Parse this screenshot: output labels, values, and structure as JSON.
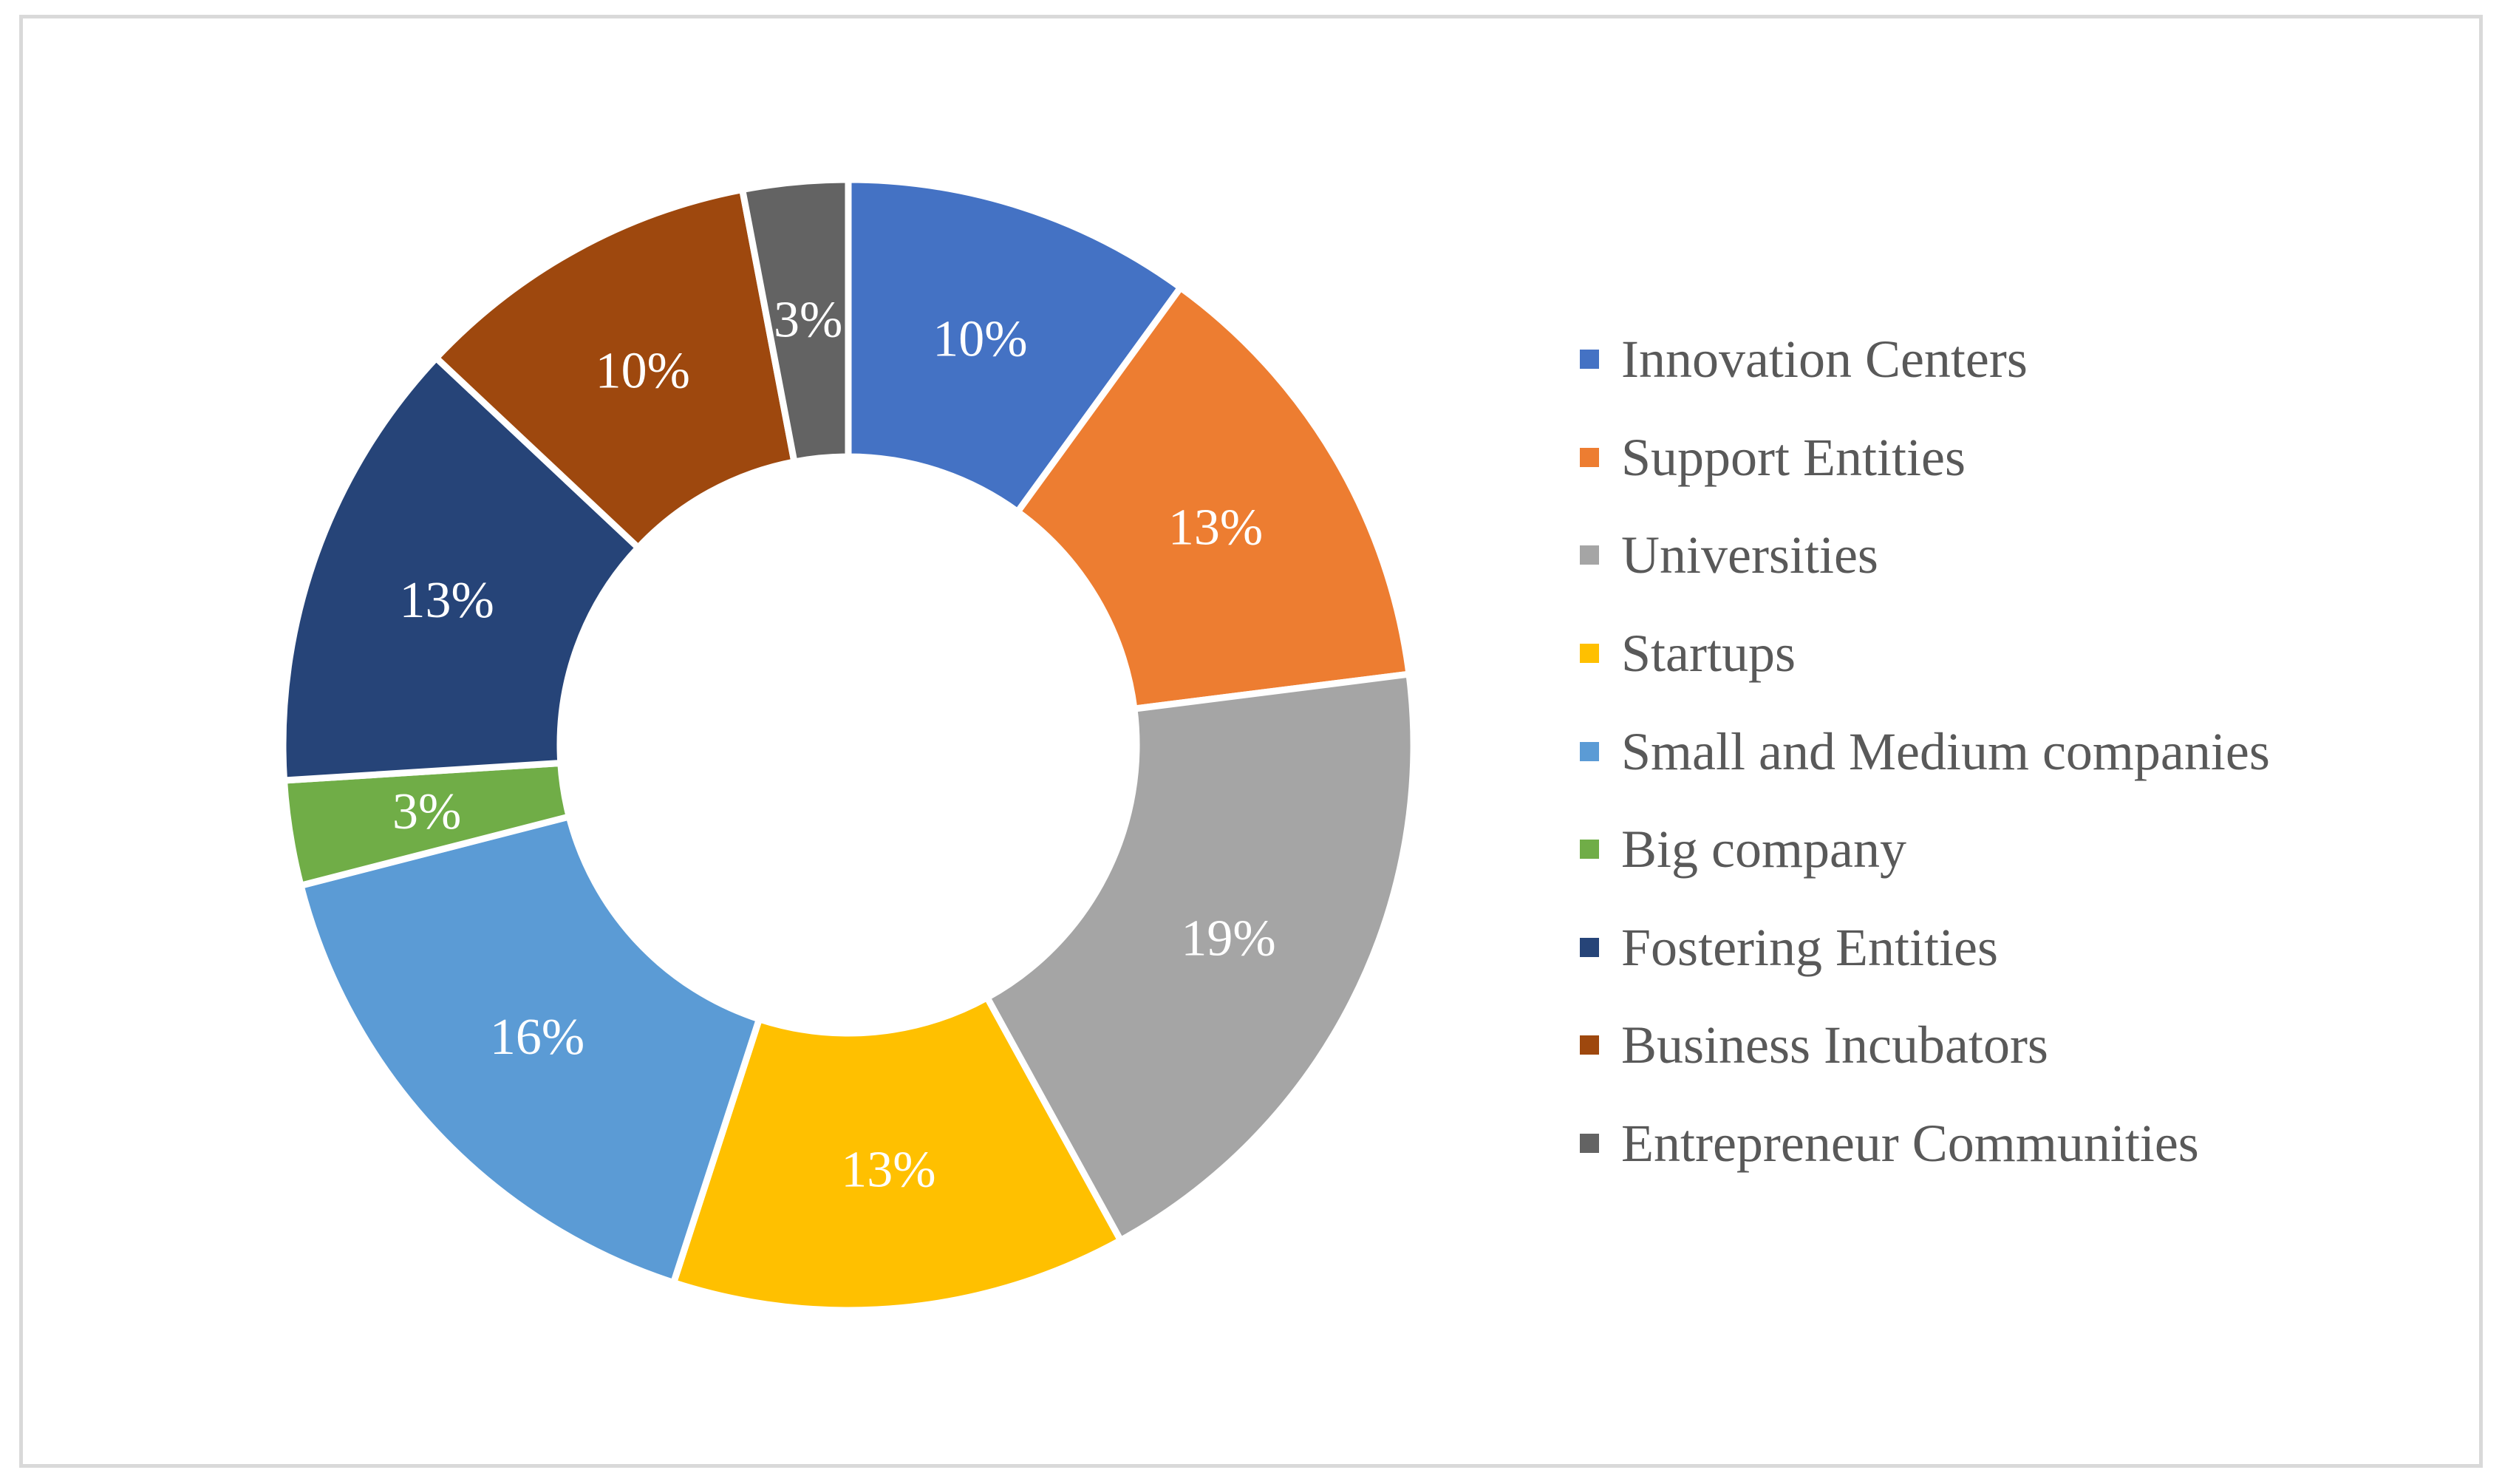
{
  "chart_data": {
    "type": "pie",
    "variant": "donut",
    "title": "",
    "categories": [
      "Innovation Centers",
      "Support Entities",
      "Universities",
      "Startups",
      "Small and Medium companies",
      "Big company",
      "Fostering Entities",
      "Business Incubators",
      "Entrepreneur Communities"
    ],
    "values": [
      10,
      13,
      19,
      13,
      16,
      3,
      13,
      10,
      3
    ],
    "labels": [
      "10%",
      "13%",
      "19%",
      "13%",
      "16%",
      "3%",
      "13%",
      "10%",
      "3%"
    ],
    "colors": [
      "#4472c4",
      "#ed7d31",
      "#a5a5a5",
      "#ffc000",
      "#5b9bd5",
      "#70ad47",
      "#264478",
      "#9e480e",
      "#636363"
    ],
    "legend_position": "right"
  }
}
